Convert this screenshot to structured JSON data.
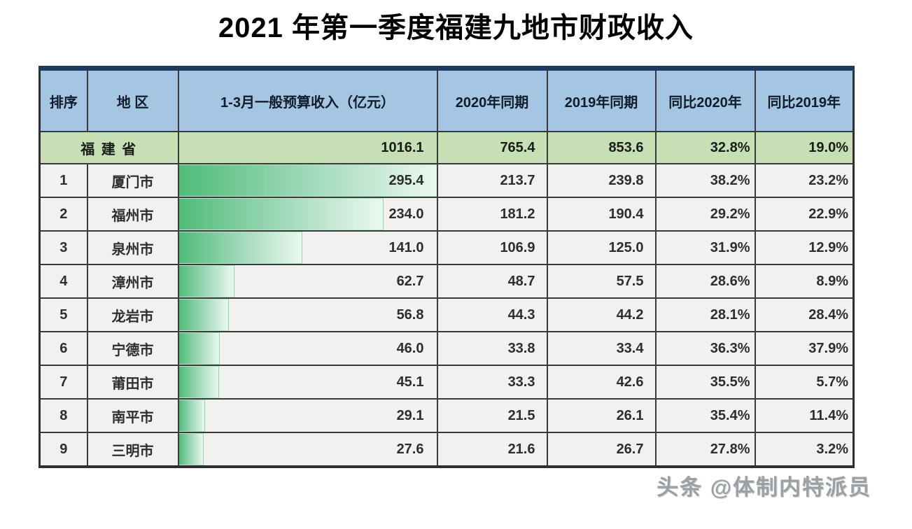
{
  "title": "2021 年第一季度福建九地市财政收入",
  "watermark": "头条 @体制内特派员",
  "colors": {
    "header_bg": "#a5c6e2",
    "province_row_bg": "#c6dfb4",
    "cell_bg": "#f1f1ef",
    "top_band": "#1e3a5e",
    "grid_border": "#3a3a3a",
    "databar_start": "#4fbc79",
    "databar_end": "#eaf8f0"
  },
  "table": {
    "bar_max": 295.4,
    "headers": [
      "排序",
      "地  区",
      "1-3月一般预算收入（亿元）",
      "2020年同期",
      "2019年同期",
      "同比2020年",
      "同比2019年"
    ],
    "province_row": {
      "region": "福 建 省",
      "revenue": "1016.1",
      "y2020": "765.4",
      "y2019": "853.6",
      "yoy2020": "32.8%",
      "yoy2019": "19.0%"
    },
    "rows": [
      {
        "rank": "1",
        "region": "厦门市",
        "revenue": "295.4",
        "y2020": "213.7",
        "y2019": "239.8",
        "yoy2020": "38.2%",
        "yoy2019": "23.2%"
      },
      {
        "rank": "2",
        "region": "福州市",
        "revenue": "234.0",
        "y2020": "181.2",
        "y2019": "190.4",
        "yoy2020": "29.2%",
        "yoy2019": "22.9%"
      },
      {
        "rank": "3",
        "region": "泉州市",
        "revenue": "141.0",
        "y2020": "106.9",
        "y2019": "125.0",
        "yoy2020": "31.9%",
        "yoy2019": "12.9%"
      },
      {
        "rank": "4",
        "region": "漳州市",
        "revenue": "62.7",
        "y2020": "48.7",
        "y2019": "57.5",
        "yoy2020": "28.6%",
        "yoy2019": "8.9%"
      },
      {
        "rank": "5",
        "region": "龙岩市",
        "revenue": "56.8",
        "y2020": "44.3",
        "y2019": "44.2",
        "yoy2020": "28.1%",
        "yoy2019": "28.4%"
      },
      {
        "rank": "6",
        "region": "宁德市",
        "revenue": "46.0",
        "y2020": "33.8",
        "y2019": "33.4",
        "yoy2020": "36.3%",
        "yoy2019": "37.9%"
      },
      {
        "rank": "7",
        "region": "莆田市",
        "revenue": "45.1",
        "y2020": "33.3",
        "y2019": "42.6",
        "yoy2020": "35.5%",
        "yoy2019": "5.7%"
      },
      {
        "rank": "8",
        "region": "南平市",
        "revenue": "29.1",
        "y2020": "21.5",
        "y2019": "26.1",
        "yoy2020": "35.4%",
        "yoy2019": "11.4%"
      },
      {
        "rank": "9",
        "region": "三明市",
        "revenue": "27.6",
        "y2020": "21.6",
        "y2019": "26.7",
        "yoy2020": "27.8%",
        "yoy2019": "3.2%"
      }
    ]
  },
  "chart_data": {
    "type": "table",
    "title": "2021 年第一季度福建九地市财政收入",
    "columns": [
      "排序",
      "地区",
      "1-3月一般预算收入（亿元）",
      "2020年同期",
      "2019年同期",
      "同比2020年",
      "同比2019年"
    ],
    "unit": "亿元",
    "databar": {
      "column": "1-3月一般预算收入（亿元）",
      "applies_to": "city_rows",
      "max": 295.4,
      "gradient": [
        "#4fbc79",
        "#eaf8f0"
      ]
    },
    "rows": [
      {
        "rank": null,
        "region": "福建省",
        "revenue_q1_2021": 1016.1,
        "same_period_2020": 765.4,
        "same_period_2019": 853.6,
        "yoy_vs_2020_pct": 32.8,
        "yoy_vs_2019_pct": 19.0
      },
      {
        "rank": 1,
        "region": "厦门市",
        "revenue_q1_2021": 295.4,
        "same_period_2020": 213.7,
        "same_period_2019": 239.8,
        "yoy_vs_2020_pct": 38.2,
        "yoy_vs_2019_pct": 23.2
      },
      {
        "rank": 2,
        "region": "福州市",
        "revenue_q1_2021": 234.0,
        "same_period_2020": 181.2,
        "same_period_2019": 190.4,
        "yoy_vs_2020_pct": 29.2,
        "yoy_vs_2019_pct": 22.9
      },
      {
        "rank": 3,
        "region": "泉州市",
        "revenue_q1_2021": 141.0,
        "same_period_2020": 106.9,
        "same_period_2019": 125.0,
        "yoy_vs_2020_pct": 31.9,
        "yoy_vs_2019_pct": 12.9
      },
      {
        "rank": 4,
        "region": "漳州市",
        "revenue_q1_2021": 62.7,
        "same_period_2020": 48.7,
        "same_period_2019": 57.5,
        "yoy_vs_2020_pct": 28.6,
        "yoy_vs_2019_pct": 8.9
      },
      {
        "rank": 5,
        "region": "龙岩市",
        "revenue_q1_2021": 56.8,
        "same_period_2020": 44.3,
        "same_period_2019": 44.2,
        "yoy_vs_2020_pct": 28.1,
        "yoy_vs_2019_pct": 28.4
      },
      {
        "rank": 6,
        "region": "宁德市",
        "revenue_q1_2021": 46.0,
        "same_period_2020": 33.8,
        "same_period_2019": 33.4,
        "yoy_vs_2020_pct": 36.3,
        "yoy_vs_2019_pct": 37.9
      },
      {
        "rank": 7,
        "region": "莆田市",
        "revenue_q1_2021": 45.1,
        "same_period_2020": 33.3,
        "same_period_2019": 42.6,
        "yoy_vs_2020_pct": 35.5,
        "yoy_vs_2019_pct": 5.7
      },
      {
        "rank": 8,
        "region": "南平市",
        "revenue_q1_2021": 29.1,
        "same_period_2020": 21.5,
        "same_period_2019": 26.1,
        "yoy_vs_2020_pct": 35.4,
        "yoy_vs_2019_pct": 11.4
      },
      {
        "rank": 9,
        "region": "三明市",
        "revenue_q1_2021": 27.6,
        "same_period_2020": 21.6,
        "same_period_2019": 26.7,
        "yoy_vs_2020_pct": 27.8,
        "yoy_vs_2019_pct": 3.2
      }
    ]
  }
}
